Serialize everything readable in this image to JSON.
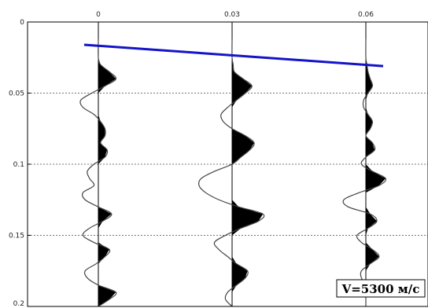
{
  "chart_data": {
    "type": "line",
    "x_tick_labels": [
      "0",
      "0.03",
      "0.06"
    ],
    "y_tick_labels": [
      "0",
      "0.05",
      "0.1",
      "0.15",
      "0.2"
    ],
    "ylim": [
      0,
      0.2
    ],
    "y_inverted": true,
    "grid": "horizontal dashed",
    "trace_offsets": [
      0,
      0.03,
      0.06
    ],
    "traces": [
      {
        "offset": 0,
        "t": [
          0.012,
          0.025,
          0.03,
          0.035,
          0.04,
          0.045,
          0.05,
          0.055,
          0.06,
          0.065,
          0.07,
          0.075,
          0.08,
          0.085,
          0.09,
          0.095,
          0.1,
          0.105,
          0.11,
          0.115,
          0.12,
          0.125,
          0.13,
          0.135,
          0.14,
          0.145,
          0.15,
          0.155,
          0.16,
          0.165,
          0.17,
          0.175,
          0.18,
          0.185,
          0.19,
          0.195,
          0.2
        ],
        "amp": [
          0,
          0,
          0.1,
          0.5,
          0.8,
          0.3,
          -0.3,
          -0.8,
          -0.7,
          -0.2,
          0.1,
          0.3,
          0.3,
          0.1,
          0.4,
          0.3,
          -0.2,
          -0.5,
          -0.4,
          -0.2,
          -0.7,
          -0.6,
          0,
          0.6,
          0.2,
          -0.4,
          -0.7,
          -0.2,
          0.5,
          0.3,
          -0.1,
          -0.6,
          -0.5,
          0,
          0.8,
          0.5,
          0
        ]
      },
      {
        "offset": 0.03,
        "t": [
          0.012,
          0.025,
          0.03,
          0.035,
          0.04,
          0.045,
          0.05,
          0.055,
          0.06,
          0.065,
          0.07,
          0.075,
          0.08,
          0.085,
          0.09,
          0.095,
          0.1,
          0.105,
          0.11,
          0.115,
          0.12,
          0.125,
          0.13,
          0.135,
          0.14,
          0.145,
          0.15,
          0.155,
          0.16,
          0.165,
          0.17,
          0.175,
          0.18,
          0.185,
          0.19,
          0.195,
          0.2
        ],
        "amp": [
          0,
          0,
          0.05,
          0.1,
          0.5,
          0.9,
          0.6,
          0.2,
          -0.2,
          -0.5,
          -0.4,
          0,
          0.6,
          1.0,
          0.8,
          0.4,
          0,
          -0.8,
          -1.4,
          -1.5,
          -1.2,
          -0.6,
          0.3,
          1.4,
          1.2,
          0.4,
          -0.3,
          -0.8,
          -0.6,
          -0.2,
          0.2,
          0.7,
          0.6,
          0.2,
          -0.2,
          -0.3,
          0
        ]
      },
      {
        "offset": 0.06,
        "t": [
          0.012,
          0.025,
          0.03,
          0.035,
          0.04,
          0.045,
          0.05,
          0.055,
          0.06,
          0.065,
          0.07,
          0.075,
          0.08,
          0.085,
          0.09,
          0.095,
          0.1,
          0.105,
          0.11,
          0.115,
          0.12,
          0.125,
          0.13,
          0.135,
          0.14,
          0.145,
          0.15,
          0.155,
          0.16,
          0.165,
          0.17,
          0.175,
          0.18,
          0.185,
          0.19,
          0.195,
          0.2
        ],
        "amp": [
          0,
          0,
          0.05,
          0.1,
          0.2,
          0.3,
          0.1,
          -0.1,
          -0.1,
          0.1,
          0.3,
          0.2,
          0,
          0.3,
          0.4,
          0,
          -0.2,
          0.3,
          0.9,
          0.6,
          -0.3,
          -1.0,
          -0.8,
          0.2,
          0.5,
          0.1,
          -0.4,
          -0.2,
          0.3,
          0.6,
          0.2,
          -0.2,
          -0.2,
          0,
          0,
          0,
          0
        ]
      }
    ],
    "pick_line": {
      "t_start": 0.016,
      "t_end": 0.031,
      "color": "#1414c8"
    },
    "annotation": "V=5300 м/с"
  }
}
